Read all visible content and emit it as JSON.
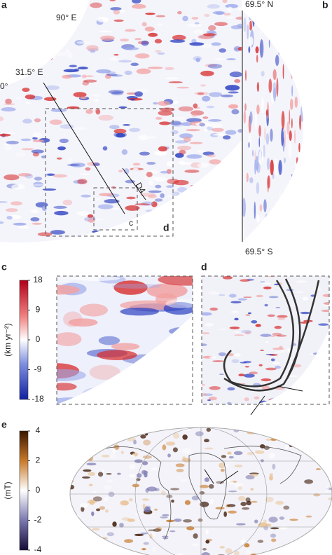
{
  "panel_a": {
    "label": "a",
    "lon_top": "90° E",
    "lon_mid": "31.5° E",
    "lon_left": "0°",
    "profile": "D4",
    "inset_c": "c",
    "inset_d": "d"
  },
  "panel_b": {
    "label": "b",
    "north": "69.5° N",
    "south": "69.5° S"
  },
  "panel_c": {
    "label": "c",
    "colorbar": {
      "label": "(km yr⁻²)",
      "lim": [
        -18,
        18
      ],
      "ticks": [
        18,
        9,
        0,
        -9,
        -18
      ]
    }
  },
  "panel_d": {
    "label": "d"
  },
  "panel_e": {
    "label": "e",
    "colorbar": {
      "label": "(mT)",
      "lim": [
        -4,
        4
      ],
      "ticks": [
        4,
        2,
        0,
        -2,
        -4
      ]
    }
  }
}
